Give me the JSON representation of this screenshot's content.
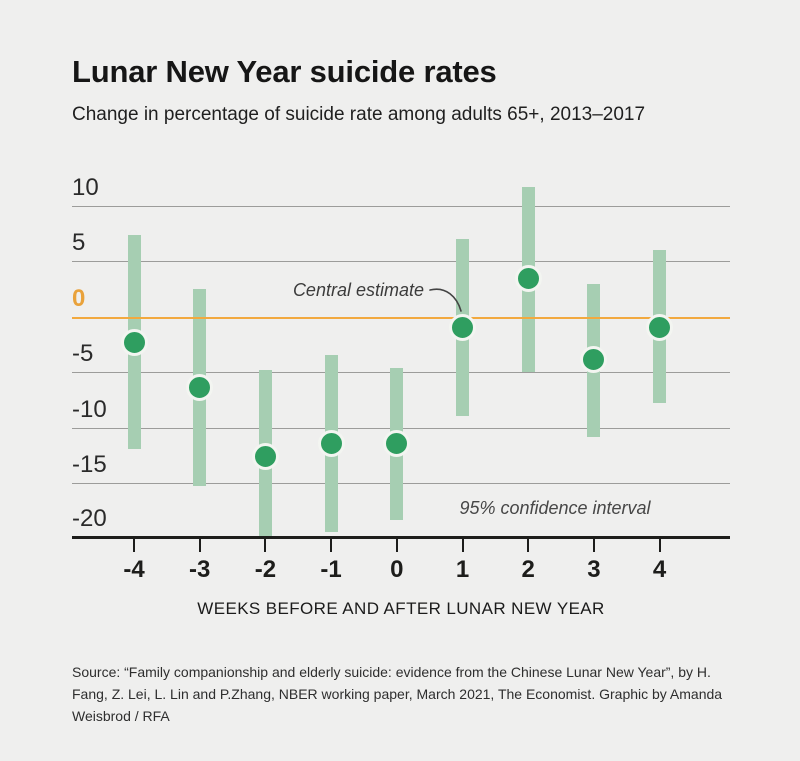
{
  "header": {
    "title": "Lunar New Year suicide rates",
    "subtitle": "Change in percentage of suicide rate among adults 65+, 2013–2017"
  },
  "chart_data": {
    "type": "scatter",
    "subtype": "central-estimate-with-95%-confidence-interval-bars",
    "categories": [
      "-4",
      "-3",
      "-2",
      "-1",
      "0",
      "1",
      "2",
      "3",
      "4"
    ],
    "series": [
      {
        "name": "Central estimate",
        "values": [
          -2.3,
          -6.4,
          -12.6,
          -11.4,
          -11.4,
          -1.0,
          3.4,
          -3.9,
          -1.0
        ]
      },
      {
        "name": "95% CI upper",
        "values": [
          7.4,
          2.5,
          -4.8,
          -3.5,
          -4.6,
          7.0,
          11.7,
          2.9,
          6.0
        ]
      },
      {
        "name": "95% CI lower",
        "values": [
          -11.9,
          -15.3,
          -20.0,
          -19.4,
          -18.3,
          -9.0,
          -5.0,
          -10.9,
          -7.8
        ]
      }
    ],
    "xlabel": "WEEKS BEFORE AND AFTER LUNAR NEW YEAR",
    "ylabel": "",
    "ylim": [
      -20,
      12
    ],
    "yticks": [
      10,
      5,
      0,
      -5,
      -10,
      -15,
      -20
    ],
    "grid": "horizontal",
    "zero_line": 0,
    "annotations": {
      "central_estimate_label": "Central estimate",
      "confidence_interval_label": "95% confidence interval"
    },
    "colors": {
      "background": "#efefee",
      "interval_bar": "#a6ceb2",
      "dot": "#2f9e60",
      "dot_ring": "#f3f5f1",
      "zero_line": "#f2a93f",
      "zero_label": "#e9a23b",
      "gridline": "#9c9c9a",
      "axis": "#1d1d1b"
    }
  },
  "footer": {
    "source": "Source: “Family companionship and elderly suicide: evidence from the Chinese Lunar New Year”, by H. Fang, Z. Lei, L. Lin and P.Zhang, NBER working paper, March 2021, The Economist. Graphic by Amanda Weisbrod / RFA"
  }
}
